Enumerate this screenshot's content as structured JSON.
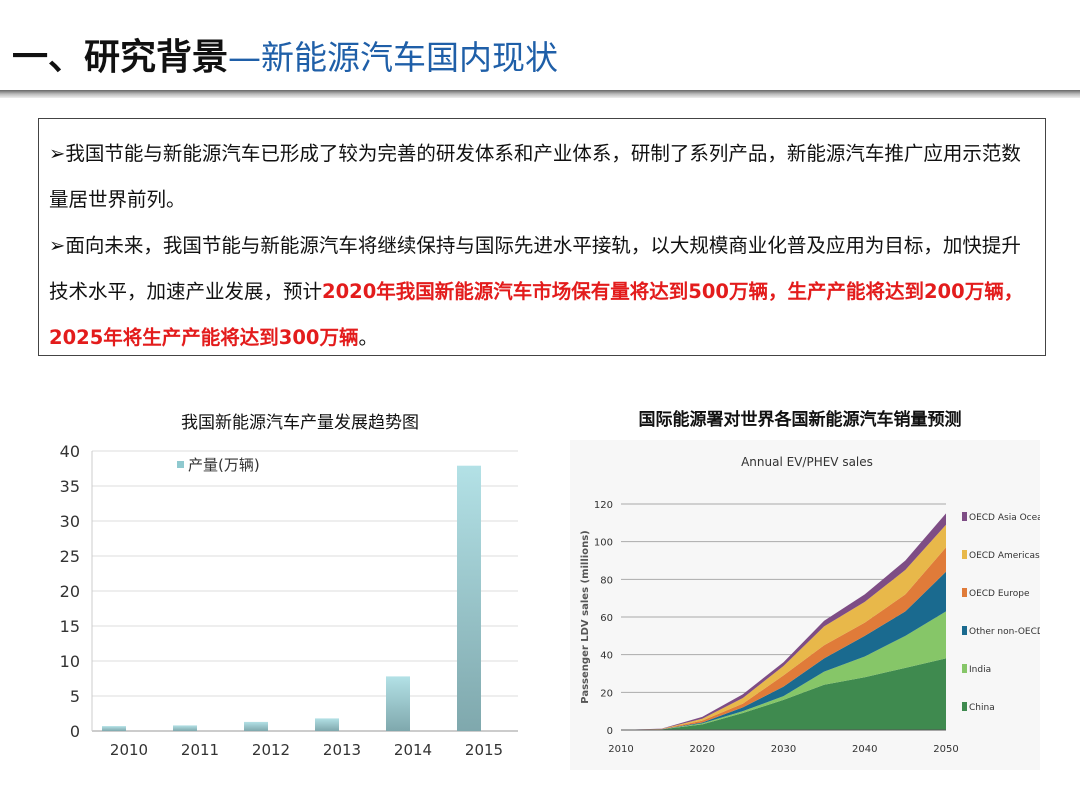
{
  "title": {
    "main": "一、研究背景",
    "sub": "—新能源汽车国内现状"
  },
  "box": {
    "p1": "➢我国节能与新能源汽车已形成了较为完善的研发体系和产业体系，研制了系列产品，新能源汽车推广应用示范数量居世界前列。",
    "p2_normal": "➢面向未来，我国节能与新能源汽车将继续保持与国际先进水平接轨，以大规模商业化普及应用为目标，加快提升技术水平，加速产业发展，预计",
    "p2_red": "2020年我国新能源汽车市场保有量将达到500万辆，生产产能将达到200万辆，2025年将生产产能将达到300万辆",
    "p2_end": "。"
  },
  "chart_data": [
    {
      "type": "bar",
      "title": "我国新能源汽车产量发展趋势图",
      "categories": [
        "2010",
        "2011",
        "2012",
        "2013",
        "2014",
        "2015"
      ],
      "series": [
        {
          "name": "产量(万辆)",
          "values": [
            0.7,
            0.8,
            1.3,
            1.8,
            7.8,
            37.9
          ]
        }
      ],
      "ylim": [
        0,
        40
      ],
      "yticks": [
        0,
        5,
        10,
        15,
        20,
        25,
        30,
        35,
        40
      ],
      "grid": true,
      "legend": "top-left",
      "color": "#8fc9cf"
    },
    {
      "type": "area",
      "stacked": true,
      "caption": "国际能源署对世界各国新能源汽车销量预测",
      "title": "Annual EV/PHEV sales",
      "ylabel": "Passenger LDV sales (millions)",
      "x": [
        2010,
        2015,
        2020,
        2025,
        2030,
        2035,
        2040,
        2045,
        2050
      ],
      "xticks": [
        2010,
        2020,
        2030,
        2040,
        2050
      ],
      "ylim": [
        0,
        120
      ],
      "yticks": [
        0,
        20,
        40,
        60,
        80,
        100,
        120
      ],
      "legend": "right",
      "grid": true,
      "series": [
        {
          "name": "China",
          "color": "#3f8a4f",
          "values": [
            0,
            0.3,
            3,
            9,
            16,
            24,
            28,
            33,
            38
          ]
        },
        {
          "name": "India",
          "color": "#86c668",
          "values": [
            0,
            0,
            0.5,
            1,
            2,
            7,
            11,
            17,
            25
          ]
        },
        {
          "name": "Other non-OECD",
          "color": "#1a6a8f",
          "values": [
            0,
            0.1,
            0.5,
            2,
            5,
            7,
            11,
            13,
            21
          ]
        },
        {
          "name": "OECD Europe",
          "color": "#e07b39",
          "values": [
            0,
            0.1,
            1,
            2,
            6,
            7,
            7,
            9,
            13
          ]
        },
        {
          "name": "OECD Americas",
          "color": "#e8b84a",
          "values": [
            0,
            0.1,
            1,
            3,
            5,
            10,
            11,
            13,
            12
          ]
        },
        {
          "name": "OECD Asia Oceania",
          "color": "#7e4d85",
          "values": [
            0,
            0.1,
            1,
            2,
            2,
            3,
            4,
            5,
            6
          ]
        }
      ]
    }
  ]
}
